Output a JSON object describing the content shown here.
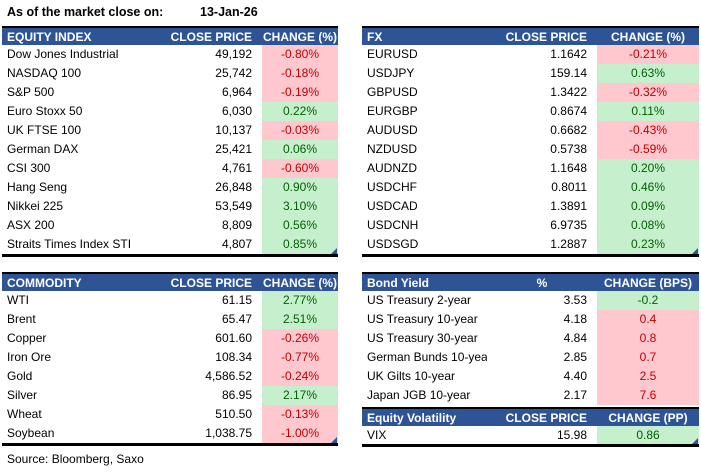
{
  "header": {
    "as_of_label": "As of the market close on:",
    "as_of_date": "13-Jan-26"
  },
  "footer": {
    "source": "Source: Bloomberg, Saxo"
  },
  "colors": {
    "header_bg": "#2F5496",
    "header_text": "#FFFFFF",
    "positive_bg": "#C6EFCE",
    "positive_text": "#006100",
    "negative_bg": "#FFC7CE",
    "negative_text": "#C00000"
  },
  "chart_data": [
    {
      "type": "table",
      "id": "equity-index",
      "title": "EQUITY INDEX",
      "columns": [
        "EQUITY INDEX",
        "CLOSE PRICE",
        "CHANGE (%)"
      ],
      "rows": [
        {
          "name": "Dow Jones Industrial",
          "value": "49,192",
          "change": "-0.80%",
          "color": "red"
        },
        {
          "name": "NASDAQ 100",
          "value": "25,742",
          "change": "-0.18%",
          "color": "red"
        },
        {
          "name": "S&P 500",
          "value": "6,964",
          "change": "-0.19%",
          "color": "red"
        },
        {
          "name": "Euro Stoxx 50",
          "value": "6,030",
          "change": "0.22%",
          "color": "green"
        },
        {
          "name": "UK FTSE 100",
          "value": "10,137",
          "change": "-0.03%",
          "color": "red"
        },
        {
          "name": "German DAX",
          "value": "25,421",
          "change": "0.06%",
          "color": "green"
        },
        {
          "name": "CSI 300",
          "value": "4,761",
          "change": "-0.60%",
          "color": "red"
        },
        {
          "name": "Hang Seng",
          "value": "26,848",
          "change": "0.90%",
          "color": "green"
        },
        {
          "name": "Nikkei 225",
          "value": "53,549",
          "change": "3.10%",
          "color": "green"
        },
        {
          "name": "ASX 200",
          "value": "8,809",
          "change": "0.56%",
          "color": "green"
        },
        {
          "name": "Straits Times Index STI",
          "value": "4,807",
          "change": "0.85%",
          "color": "green"
        }
      ]
    },
    {
      "type": "table",
      "id": "fx",
      "title": "FX",
      "columns": [
        "FX",
        "CLOSE PRICE",
        "CHANGE (%)"
      ],
      "rows": [
        {
          "name": "EURUSD",
          "value": "1.1642",
          "change": "-0.21%",
          "color": "red"
        },
        {
          "name": "USDJPY",
          "value": "159.14",
          "change": "0.63%",
          "color": "green"
        },
        {
          "name": "GBPUSD",
          "value": "1.3422",
          "change": "-0.32%",
          "color": "red"
        },
        {
          "name": "EURGBP",
          "value": "0.8674",
          "change": "0.11%",
          "color": "green"
        },
        {
          "name": "AUDUSD",
          "value": "0.6682",
          "change": "-0.43%",
          "color": "red"
        },
        {
          "name": "NZDUSD",
          "value": "0.5738",
          "change": "-0.59%",
          "color": "red"
        },
        {
          "name": "AUDNZD",
          "value": "1.1648",
          "change": "0.20%",
          "color": "green"
        },
        {
          "name": "USDCHF",
          "value": "0.8011",
          "change": "0.46%",
          "color": "green"
        },
        {
          "name": "USDCAD",
          "value": "1.3891",
          "change": "0.09%",
          "color": "green"
        },
        {
          "name": "USDCNH",
          "value": "6.9735",
          "change": "0.08%",
          "color": "green"
        },
        {
          "name": "USDSGD",
          "value": "1.2887",
          "change": "0.23%",
          "color": "green"
        }
      ]
    },
    {
      "type": "table",
      "id": "commodity",
      "title": "COMMODITY",
      "columns": [
        "COMMODITY",
        "CLOSE PRICE",
        "CHANGE (%)"
      ],
      "rows": [
        {
          "name": "WTI",
          "value": "61.15",
          "change": "2.77%",
          "color": "green"
        },
        {
          "name": "Brent",
          "value": "65.47",
          "change": "2.51%",
          "color": "green"
        },
        {
          "name": "Copper",
          "value": "601.60",
          "change": "-0.26%",
          "color": "red"
        },
        {
          "name": "Iron Ore",
          "value": "108.34",
          "change": "-0.77%",
          "color": "red"
        },
        {
          "name": "Gold",
          "value": "4,586.52",
          "change": "-0.24%",
          "color": "red"
        },
        {
          "name": "Silver",
          "value": "86.95",
          "change": "2.17%",
          "color": "green"
        },
        {
          "name": "Wheat",
          "value": "510.50",
          "change": "-0.13%",
          "color": "red"
        },
        {
          "name": "Soybean",
          "value": "1,038.75",
          "change": "-1.00%",
          "color": "red"
        }
      ]
    },
    {
      "type": "table",
      "id": "bond-yield",
      "title": "Bond Yield",
      "columns": [
        "Bond Yield",
        "%",
        "CHANGE (BPS)"
      ],
      "center_value_header": true,
      "rows": [
        {
          "name": "US Treasury 2-year",
          "value": "3.53",
          "change": "-0.2",
          "color": "green"
        },
        {
          "name": "US Treasury 10-year",
          "value": "4.18",
          "change": "0.4",
          "color": "red"
        },
        {
          "name": "US Treasury 30-year",
          "value": "4.84",
          "change": "0.8",
          "color": "red"
        },
        {
          "name": "German Bunds 10-year",
          "value": "2.85",
          "change": "0.7",
          "color": "red"
        },
        {
          "name": "UK Gilts 10-year",
          "value": "4.40",
          "change": "2.5",
          "color": "red"
        },
        {
          "name": "Japan JGB 10-year",
          "value": "2.17",
          "change": "7.6",
          "color": "red"
        }
      ]
    },
    {
      "type": "table",
      "id": "equity-volatility",
      "title": "Equity Volatility",
      "columns": [
        "Equity Volatility",
        "CLOSE PRICE",
        "CHANGE (PP)"
      ],
      "rows": [
        {
          "name": "VIX",
          "value": "15.98",
          "change": "0.86",
          "color": "green"
        }
      ]
    }
  ]
}
